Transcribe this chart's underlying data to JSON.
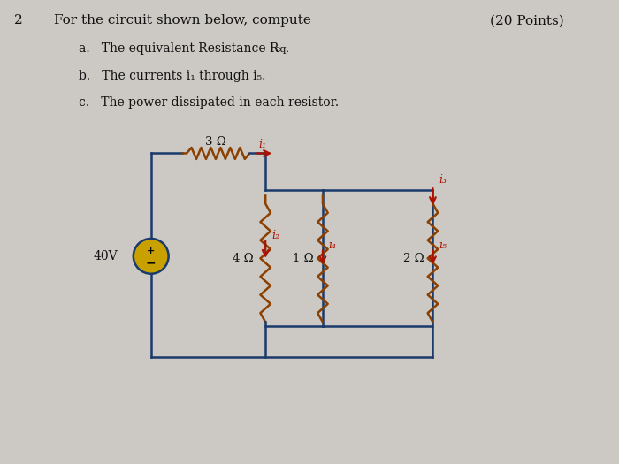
{
  "bg_color": "#ccc9c4",
  "wire_color": "#1a3a6b",
  "resistor_color": "#8B4000",
  "arrow_color": "#aa1100",
  "text_color": "#111111",
  "title_num": "2",
  "title_text": "For the circuit shown below, compute",
  "points_text": "(20 Points)",
  "item_a": "a.   The equivalent Resistance R",
  "item_a_sub": "eq.",
  "item_b": "b.   The currents i₁ through i₅.",
  "item_c": "c.   The power dissipated in each resistor.",
  "voltage": "40V",
  "r1_label": "3 Ω",
  "r2_label": "4 Ω",
  "r3_label": "1 Ω",
  "r4_label": "2 Ω",
  "i1_label": "i₁",
  "i2_label": "i₂",
  "i3_label": "i₃",
  "i4_label": "i₄",
  "i5_label": "i₅",
  "source_color": "#c8a000",
  "figw": 7.0,
  "figh": 5.25,
  "dpi": 100
}
